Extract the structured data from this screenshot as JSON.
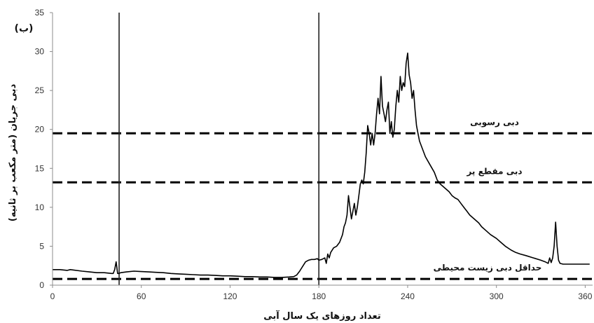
{
  "chart_data": {
    "type": "line",
    "panel_label": "(ب)",
    "xlabel": "تعداد روزهای یک سال آبی",
    "ylabel": "دبی جریان (متر مکعب بر ثانیه)",
    "xlim": [
      0,
      365
    ],
    "ylim": [
      0,
      35
    ],
    "xticks": [
      0,
      60,
      120,
      180,
      240,
      300,
      360
    ],
    "yticks": [
      0,
      5,
      10,
      15,
      20,
      25,
      30,
      35
    ],
    "grid": false,
    "vertical_lines": [
      45,
      180
    ],
    "reference_lines": [
      {
        "label": "دبی رسوبی",
        "value": 19.5
      },
      {
        "label": "دبی مقطع پر",
        "value": 13.2
      },
      {
        "label": "حداقل دبی زیست محیطی",
        "value": 0.8
      }
    ],
    "series": [
      {
        "x": [
          0,
          5,
          10,
          12,
          20,
          25,
          30,
          35,
          40,
          41,
          42,
          43,
          44,
          45,
          46,
          50,
          55,
          60,
          65,
          70,
          75,
          80,
          85,
          90,
          95,
          100,
          105,
          110,
          115,
          120,
          125,
          130,
          135,
          140,
          145,
          150,
          155,
          160,
          163,
          165,
          167,
          169,
          171,
          173,
          175,
          177,
          179,
          180,
          182,
          184,
          185,
          186,
          187,
          188,
          190,
          192,
          194,
          196,
          197,
          198,
          199,
          200,
          201,
          202,
          203,
          204,
          205,
          206,
          207,
          208,
          209,
          210,
          211,
          212,
          213,
          214,
          215,
          216,
          217,
          218,
          219,
          220,
          221,
          222,
          223,
          224,
          225,
          226,
          227,
          228,
          229,
          230,
          231,
          232,
          233,
          234,
          235,
          236,
          237,
          238,
          239,
          240,
          241,
          242,
          243,
          244,
          245,
          246,
          247,
          248,
          250,
          252,
          255,
          258,
          260,
          262,
          265,
          268,
          270,
          272,
          274,
          276,
          278,
          280,
          282,
          285,
          288,
          290,
          293,
          296,
          300,
          303,
          306,
          310,
          313,
          316,
          320,
          325,
          330,
          333,
          335,
          336,
          337,
          338,
          339,
          340,
          341,
          342,
          343,
          345,
          350,
          355,
          360,
          363
        ],
        "values": [
          2.0,
          2.0,
          1.9,
          2.0,
          1.8,
          1.7,
          1.6,
          1.6,
          1.5,
          1.5,
          2.0,
          3.0,
          1.5,
          1.5,
          1.6,
          1.7,
          1.8,
          1.75,
          1.7,
          1.65,
          1.6,
          1.5,
          1.45,
          1.4,
          1.35,
          1.3,
          1.3,
          1.25,
          1.2,
          1.2,
          1.15,
          1.1,
          1.1,
          1.05,
          1.05,
          1.0,
          1.0,
          1.05,
          1.1,
          1.3,
          1.8,
          2.4,
          3.0,
          3.2,
          3.3,
          3.3,
          3.4,
          3.2,
          3.3,
          3.5,
          2.8,
          4.0,
          3.5,
          4.2,
          4.8,
          5.0,
          5.5,
          6.5,
          7.5,
          8.0,
          9.0,
          11.5,
          10.0,
          8.5,
          9.5,
          10.5,
          9.0,
          10.0,
          11.5,
          13.0,
          13.5,
          13.0,
          14.5,
          17.0,
          20.5,
          19.5,
          18.0,
          19.5,
          18.0,
          19.5,
          22.0,
          24.0,
          22.0,
          26.8,
          23.0,
          22.0,
          21.0,
          22.5,
          23.5,
          19.5,
          21.0,
          19.0,
          20.0,
          23.0,
          25.0,
          23.5,
          26.8,
          25.0,
          26.0,
          25.5,
          28.5,
          29.8,
          27.0,
          26.0,
          24.0,
          25.0,
          22.5,
          20.5,
          19.5,
          18.5,
          17.5,
          16.5,
          15.5,
          14.5,
          13.5,
          13.0,
          12.5,
          12.0,
          11.5,
          11.2,
          11.0,
          10.5,
          10.0,
          9.5,
          9.0,
          8.5,
          8.0,
          7.5,
          7.0,
          6.5,
          6.0,
          5.5,
          5.0,
          4.5,
          4.2,
          4.0,
          3.8,
          3.5,
          3.2,
          3.0,
          2.8,
          3.5,
          2.9,
          3.5,
          5.0,
          8.1,
          5.0,
          3.2,
          2.8,
          2.7,
          2.7,
          2.7,
          2.7,
          2.7
        ]
      }
    ]
  }
}
